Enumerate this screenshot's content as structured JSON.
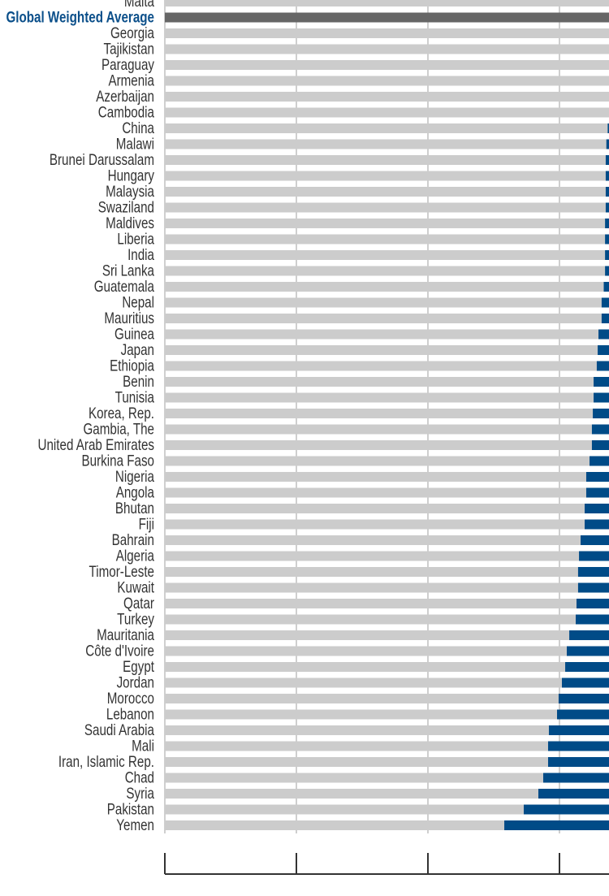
{
  "chart_data": {
    "type": "bar",
    "orientation": "horizontal",
    "title": "",
    "xlabel": "",
    "ylabel": "",
    "grid": true,
    "note": "Chart cropped at right edge; no tick labels visible. Values are the visible blue bar lengths in gridline intervals.",
    "colors": {
      "background_bar": "#cccccc",
      "highlight_bar": "#666666",
      "value_bar": "#004b87",
      "highlight_label": "#0b4f8a",
      "label": "#333333"
    },
    "highlight": "Global Weighted Average",
    "categories": [
      "Malta",
      "Global Weighted Average",
      "Georgia",
      "Tajikistan",
      "Paraguay",
      "Armenia",
      "Azerbaijan",
      "Cambodia",
      "China",
      "Malawi",
      "Brunei Darussalam",
      "Hungary",
      "Malaysia",
      "Swaziland",
      "Maldives",
      "Liberia",
      "India",
      "Sri Lanka",
      "Guatemala",
      "Nepal",
      "Mauritius",
      "Guinea",
      "Japan",
      "Ethiopia",
      "Benin",
      "Tunisia",
      "Korea, Rep.",
      "Gambia, The",
      "United Arab Emirates",
      "Burkina Faso",
      "Nigeria",
      "Angola",
      "Bhutan",
      "Fiji",
      "Bahrain",
      "Algeria",
      "Timor-Leste",
      "Kuwait",
      "Qatar",
      "Turkey",
      "Mauritania",
      "Côte d'Ivoire",
      "Egypt",
      "Jordan",
      "Morocco",
      "Lebanon",
      "Saudi Arabia",
      "Mali",
      "Iran, Islamic Rep.",
      "Chad",
      "Syria",
      "Pakistan",
      "Yemen"
    ],
    "values": [
      0,
      0,
      0,
      0,
      0,
      0,
      0,
      0,
      0.01,
      0.02,
      0.025,
      0.025,
      0.025,
      0.025,
      0.03,
      0.03,
      0.03,
      0.03,
      0.04,
      0.056,
      0.056,
      0.08,
      0.086,
      0.093,
      0.117,
      0.117,
      0.123,
      0.13,
      0.13,
      0.148,
      0.173,
      0.173,
      0.185,
      0.185,
      0.216,
      0.228,
      0.235,
      0.235,
      0.247,
      0.253,
      0.302,
      0.321,
      0.333,
      0.358,
      0.383,
      0.395,
      0.457,
      0.463,
      0.463,
      0.5,
      0.537,
      0.648,
      0.796
    ],
    "axis_ticks": 4
  }
}
